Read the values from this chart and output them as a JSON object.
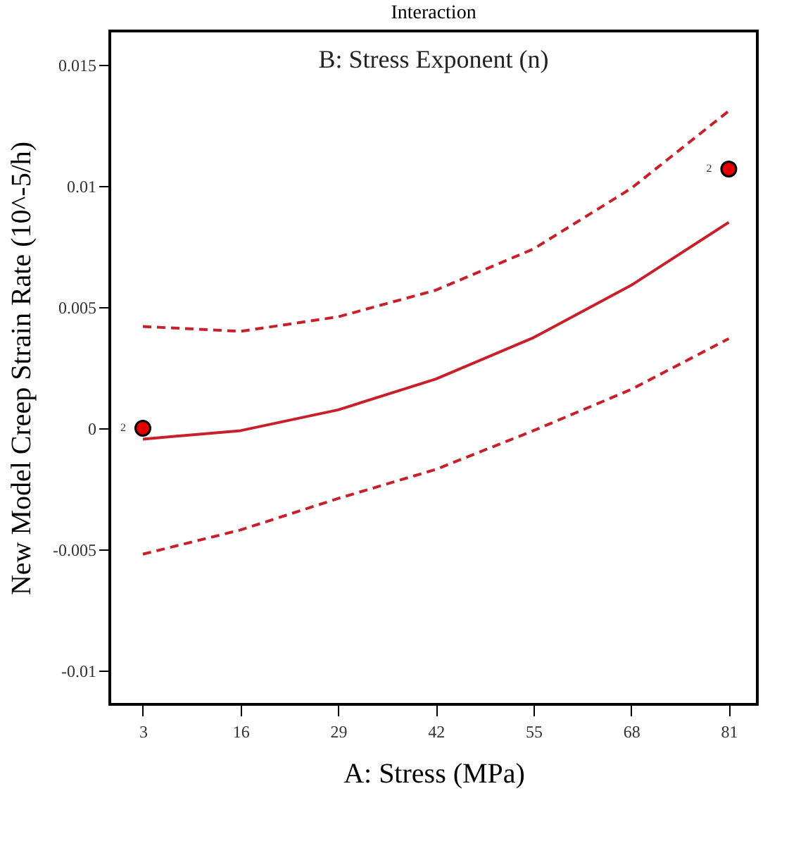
{
  "chart_data": {
    "type": "line",
    "title": "Interaction",
    "subtitle": "B: Stress Exponent  (n)",
    "xlabel": "A: Stress (MPa)",
    "ylabel": "New Model Creep Strain Rate (10^-5/h)",
    "x": [
      3,
      16,
      29,
      42,
      55,
      68,
      81
    ],
    "series": [
      {
        "color": "#c8202a",
        "line_style": "solid",
        "values": [
          -0.00045,
          -0.0001,
          0.00076,
          0.00203,
          0.00374,
          0.0059,
          0.0085
        ]
      },
      {
        "color": "#c8202a",
        "line_style": "dashed",
        "values": [
          0.0042,
          0.004,
          0.0046,
          0.0057,
          0.0074,
          0.0099,
          0.0131
        ]
      },
      {
        "color": "#c8202a",
        "line_style": "dashed",
        "values": [
          -0.0052,
          -0.0042,
          -0.0029,
          -0.0017,
          -0.0001,
          0.0016,
          0.0037
        ]
      },
      {
        "type": "scatter",
        "marker": "circle",
        "color": "#e00000",
        "x": [
          3,
          81
        ],
        "values": [
          0,
          0.0107
        ]
      }
    ],
    "annotations": [
      {
        "text": "2",
        "x": 3,
        "y": 0
      },
      {
        "text": "2",
        "x": 81,
        "y": 0.0107
      }
    ],
    "xlim": [
      -1.4,
      84.8
    ],
    "xticks": [
      3,
      16,
      29,
      42,
      55,
      68,
      81
    ],
    "ylim": [
      -0.0114,
      0.0164
    ],
    "yticks": [
      -0.01,
      -0.005,
      0,
      0.005,
      0.01,
      0.015
    ],
    "grid": false
  }
}
